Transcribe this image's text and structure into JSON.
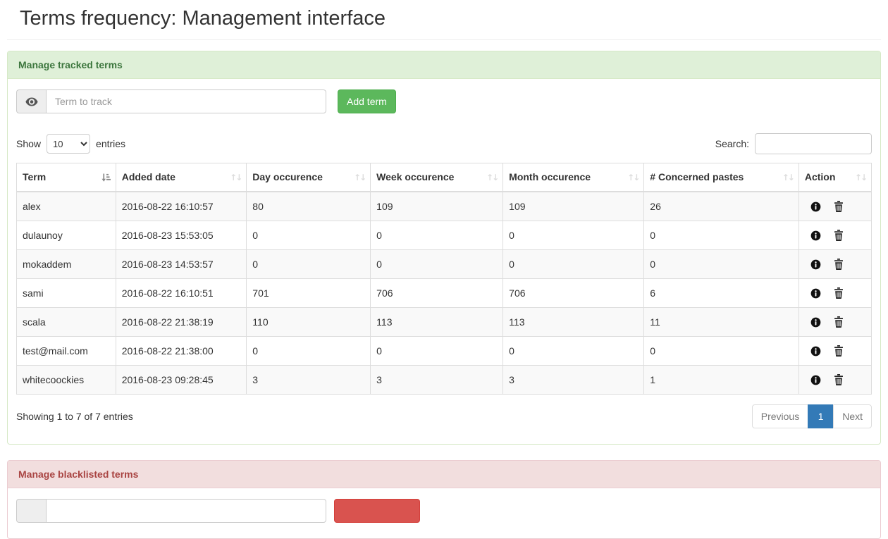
{
  "page": {
    "title": "Terms frequency: Management interface"
  },
  "tracked_panel": {
    "title": "Manage tracked terms",
    "input_placeholder": "Term to track",
    "add_button_label": "Add term",
    "show_label": "Show",
    "show_value": "10",
    "entries_label": "entries",
    "search_label": "Search:",
    "search_value": "",
    "table": {
      "columns": [
        {
          "label": "Term",
          "sort": "asc"
        },
        {
          "label": "Added date",
          "sort": "none"
        },
        {
          "label": "Day occurence",
          "sort": "none"
        },
        {
          "label": "Week occurence",
          "sort": "none"
        },
        {
          "label": "Month occurence",
          "sort": "none"
        },
        {
          "label": "# Concerned pastes",
          "sort": "none"
        },
        {
          "label": "Action",
          "sort": "none"
        }
      ],
      "rows": [
        {
          "term": "alex",
          "added": "2016-08-22 16:10:57",
          "day": "80",
          "week": "109",
          "month": "109",
          "pastes": "26"
        },
        {
          "term": "dulaunoy",
          "added": "2016-08-23 15:53:05",
          "day": "0",
          "week": "0",
          "month": "0",
          "pastes": "0"
        },
        {
          "term": "mokaddem",
          "added": "2016-08-23 14:53:57",
          "day": "0",
          "week": "0",
          "month": "0",
          "pastes": "0"
        },
        {
          "term": "sami",
          "added": "2016-08-22 16:10:51",
          "day": "701",
          "week": "706",
          "month": "706",
          "pastes": "6"
        },
        {
          "term": "scala",
          "added": "2016-08-22 21:38:19",
          "day": "110",
          "week": "113",
          "month": "113",
          "pastes": "11"
        },
        {
          "term": "test@mail.com",
          "added": "2016-08-22 21:38:00",
          "day": "0",
          "week": "0",
          "month": "0",
          "pastes": "0"
        },
        {
          "term": "whitecoockies",
          "added": "2016-08-23 09:28:45",
          "day": "3",
          "week": "3",
          "month": "3",
          "pastes": "1"
        }
      ]
    },
    "info_text": "Showing 1 to 7 of 7 entries",
    "pagination": {
      "previous": "Previous",
      "current": "1",
      "next": "Next"
    }
  },
  "blacklist_panel": {
    "title": "Manage blacklisted terms"
  },
  "icons": {
    "addon": "eye-icon",
    "row_info": "info-circle-icon",
    "row_delete": "trash-icon",
    "sorted_column": "sort-ascending-icon",
    "sortable_column": "sort-both-icon"
  },
  "colors": {
    "success_header_bg": "#dff0d8",
    "success_header_text": "#3c763d",
    "success_border": "#d6e9c6",
    "danger_header_bg": "#f2dede",
    "danger_header_text": "#a94442",
    "danger_border": "#ebccd1",
    "add_button": "#5cb85c",
    "blacklist_button": "#d9534f",
    "pagination_active": "#337ab7",
    "stripe_row": "#f9f9f9",
    "table_border": "#dddddd"
  }
}
